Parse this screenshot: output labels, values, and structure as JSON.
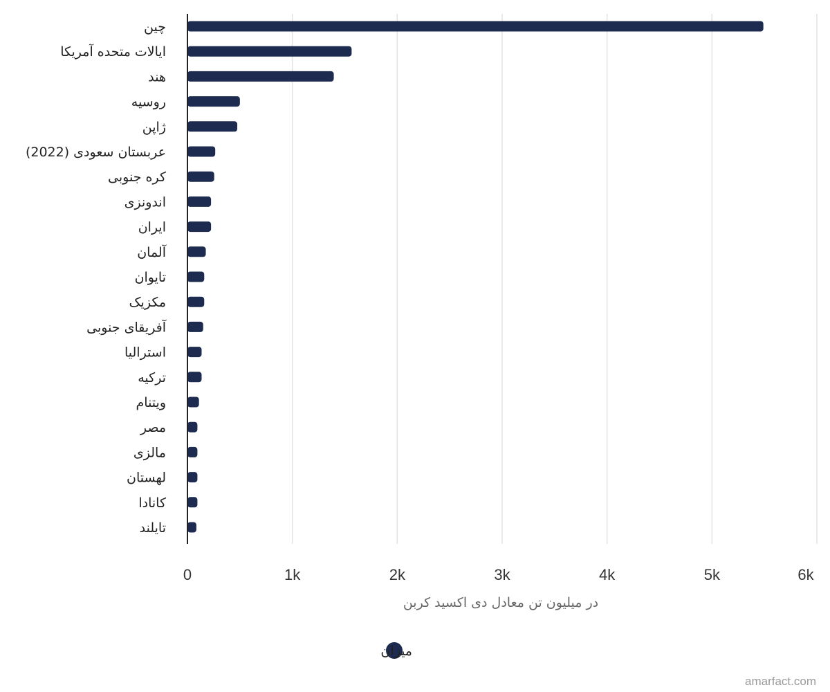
{
  "chart_data": {
    "type": "bar",
    "orientation": "horizontal",
    "categories": [
      "چین",
      "ایالات متحده آمریکا",
      "هند",
      "روسیه",
      "ژاپن",
      "عربستان سعودی (2022)",
      "کره جنوبی",
      "اندونزی",
      "ایران",
      "آلمان",
      "تایوان",
      "مکزیک",
      "آفریقای جنوبی",
      "استرالیا",
      "ترکیه",
      "ویتنام",
      "مصر",
      "مالزی",
      "لهستان",
      "کانادا",
      "تایلند"
    ],
    "series": [
      {
        "name": "میزان",
        "color": "#1c2b4f",
        "values": [
          5490,
          1565,
          1395,
          500,
          475,
          265,
          255,
          225,
          225,
          175,
          160,
          160,
          150,
          135,
          135,
          110,
          95,
          95,
          95,
          95,
          85
        ]
      }
    ],
    "xlim": [
      0,
      6000
    ],
    "x_ticks": [
      "0",
      "1k",
      "2k",
      "3k",
      "4k",
      "5k",
      "6k"
    ],
    "xlabel": "در میلیون تن معادل دی اکسید کربن",
    "grid": true,
    "legend_position": "bottom-center"
  },
  "credit": "amarfact.com"
}
